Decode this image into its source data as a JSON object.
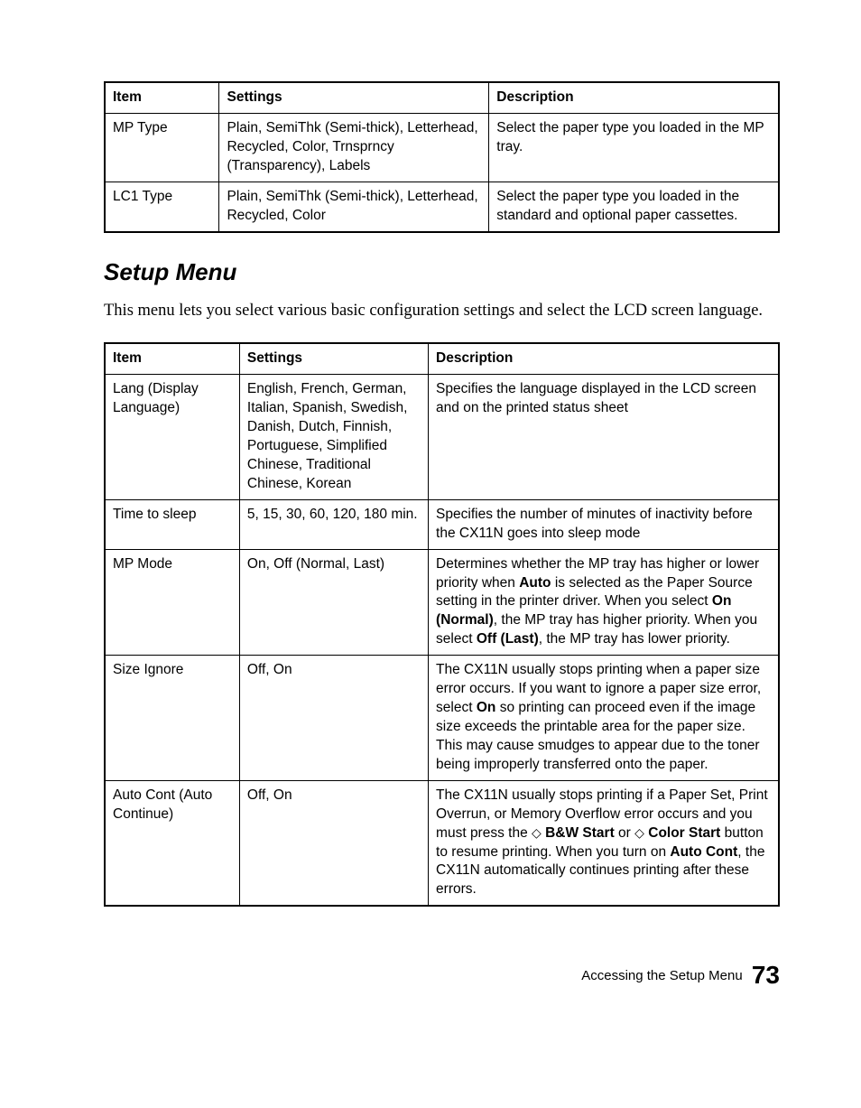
{
  "table1": {
    "headers": [
      "Item",
      "Settings",
      "Description"
    ],
    "rows": [
      {
        "item": "MP Type",
        "settings": "Plain, SemiThk (Semi-thick), Letterhead, Recycled, Color, Trnsprncy (Transparency), Labels",
        "description": "Select the paper type you loaded in the MP tray."
      },
      {
        "item": "LC1 Type",
        "settings": "Plain, SemiThk (Semi-thick), Letterhead, Recycled, Color",
        "description": "Select the paper type you loaded in the standard and optional paper cassettes."
      }
    ]
  },
  "section": {
    "heading": "Setup Menu",
    "intro": "This menu lets you select various basic configuration settings and select the LCD screen language."
  },
  "table2": {
    "headers": [
      "Item",
      "Settings",
      "Description"
    ],
    "rows": [
      {
        "item": "Lang (Display Language)",
        "settings": "English, French, German, Italian, Spanish, Swedish, Danish, Dutch, Finnish, Portuguese, Simplified Chinese, Traditional Chinese, Korean",
        "description_parts": [
          {
            "t": "Specifies the language displayed in the LCD screen and on the printed status sheet"
          }
        ]
      },
      {
        "item": "Time to sleep",
        "settings": "5, 15, 30, 60, 120, 180 min.",
        "description_parts": [
          {
            "t": "Specifies the number of minutes of inactivity before the CX11N goes into sleep mode"
          }
        ]
      },
      {
        "item": "MP Mode",
        "settings": "On, Off (Normal, Last)",
        "description_parts": [
          {
            "t": "Determines whether the MP tray has higher or lower priority when "
          },
          {
            "t": "Auto",
            "b": true
          },
          {
            "t": " is selected as the Paper Source setting in the printer driver. When you select "
          },
          {
            "t": "On (Normal)",
            "b": true
          },
          {
            "t": ", the MP tray has higher priority. When you select "
          },
          {
            "t": "Off (Last)",
            "b": true
          },
          {
            "t": ", the MP tray has lower priority."
          }
        ]
      },
      {
        "item": "Size Ignore",
        "settings": "Off, On",
        "description_parts": [
          {
            "t": "The CX11N usually stops printing when a paper size error occurs. If you want to ignore a paper size error, select "
          },
          {
            "t": "On",
            "b": true
          },
          {
            "t": " so printing can proceed even if the image size exceeds the printable area for the paper size. This may cause smudges to appear due to the toner being improperly transferred onto the paper."
          }
        ]
      },
      {
        "item": "Auto Cont (Auto Continue)",
        "settings": "Off, On",
        "description_parts": [
          {
            "t": "The CX11N usually stops printing if a Paper Set, Print Overrun, or Memory Overflow error occurs and you must press the "
          },
          {
            "diamond": true
          },
          {
            "t": " "
          },
          {
            "t": "B&W Start",
            "b": true
          },
          {
            "t": " or "
          },
          {
            "diamond": true
          },
          {
            "t": " "
          },
          {
            "t": "Color Start",
            "b": true
          },
          {
            "t": " button to resume printing. When you turn on "
          },
          {
            "t": "Auto Cont",
            "b": true
          },
          {
            "t": ", the CX11N automatically continues printing after these errors."
          }
        ]
      }
    ]
  },
  "footer": {
    "text": "Accessing the Setup Menu",
    "page": "73"
  }
}
